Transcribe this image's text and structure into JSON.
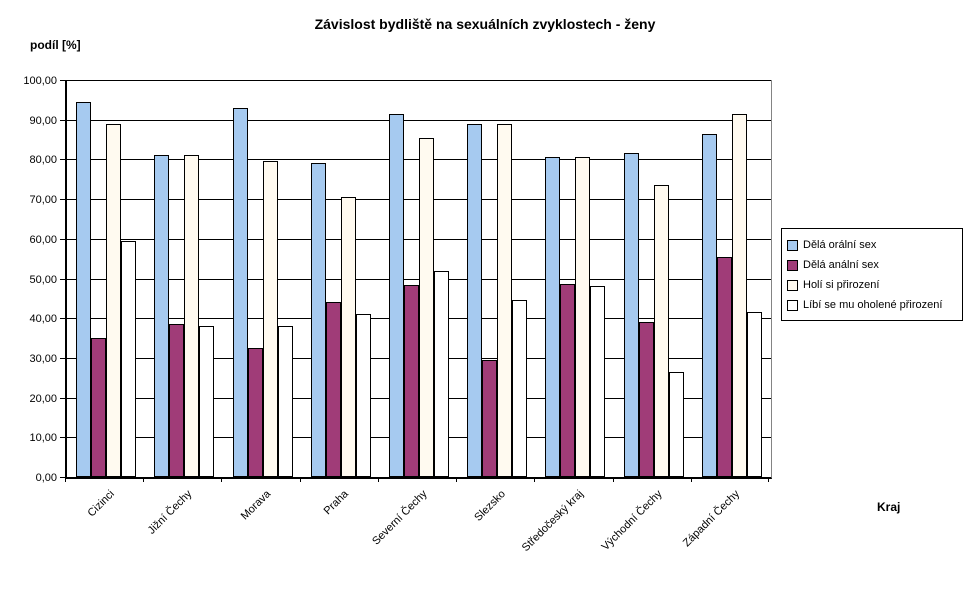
{
  "title": "Závislost bydliště na sexuálních zvyklostech - ženy",
  "chart_data": {
    "type": "bar",
    "title": "Závislost bydliště na sexuálních zvyklostech - ženy",
    "ylabel": "podíl [%]",
    "xlabel": "Kraj",
    "ylim": [
      0,
      100
    ],
    "y_tick_step": 10,
    "y_ticks": [
      "0,00",
      "10,00",
      "20,00",
      "30,00",
      "40,00",
      "50,00",
      "60,00",
      "70,00",
      "80,00",
      "90,00",
      "100,00"
    ],
    "grid": true,
    "legend_position": "right",
    "categories": [
      "Cizinci",
      "Jižní Čechy",
      "Morava",
      "Praha",
      "Severní Čechy",
      "Slezsko",
      "Středočeský kraj",
      "Východní Čechy",
      "Západní Čechy"
    ],
    "series": [
      {
        "name": "Dělá orální sex",
        "color": "#A6CAF0",
        "values": [
          94.5,
          81.0,
          93.0,
          79.0,
          91.5,
          89.0,
          80.5,
          81.5,
          86.3
        ]
      },
      {
        "name": "Dělá anální sex",
        "color": "#A03C78",
        "values": [
          35.0,
          38.5,
          32.5,
          44.0,
          48.3,
          29.5,
          48.5,
          39.0,
          55.5
        ]
      },
      {
        "name": "Holí si přirození",
        "color": "#FFFAF0",
        "values": [
          89.0,
          81.0,
          79.5,
          70.5,
          85.5,
          89.0,
          80.5,
          73.5,
          91.5
        ]
      },
      {
        "name": "Líbí se mu oholené přirození",
        "color": "#FFFFFF",
        "values": [
          59.5,
          38.0,
          38.0,
          41.0,
          52.0,
          44.5,
          48.0,
          26.5,
          41.5
        ]
      }
    ]
  },
  "colors": {
    "bar_border": "#000000",
    "gridline": "#000000",
    "plot_right_border": "#848484",
    "background": "#FFFFFF"
  }
}
